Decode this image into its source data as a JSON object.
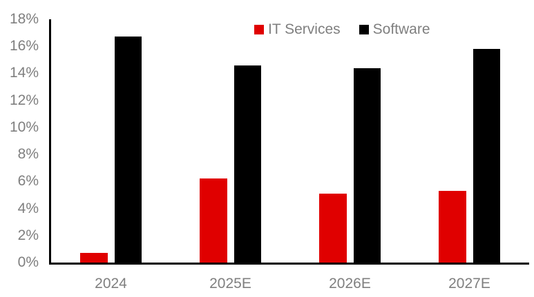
{
  "chart_data": {
    "type": "bar",
    "title": "",
    "xlabel": "",
    "ylabel": "",
    "categories": [
      "2024",
      "2025E",
      "2026E",
      "2027E"
    ],
    "series": [
      {
        "name": "IT Services",
        "color": "#e00000",
        "values": [
          0.7,
          6.2,
          5.1,
          5.3
        ]
      },
      {
        "name": "Software",
        "color": "#000000",
        "values": [
          16.7,
          14.6,
          14.4,
          15.8
        ]
      }
    ],
    "ylim": [
      0,
      18
    ],
    "y_ticks": [
      0,
      2,
      4,
      6,
      8,
      10,
      12,
      14,
      16,
      18
    ],
    "y_tick_suffix": "%",
    "grid": false,
    "legend_position": "top",
    "colors": {
      "axis_text": "#7f7f7f",
      "axis_line": "#000000",
      "background": "#ffffff"
    }
  }
}
